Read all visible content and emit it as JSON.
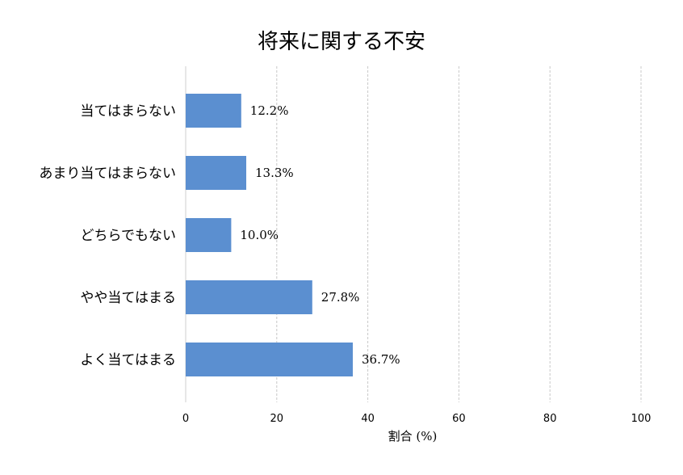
{
  "chart_data": {
    "type": "bar",
    "orientation": "horizontal",
    "title": "将来に関する不安",
    "xlabel": "割合 (%)",
    "ylabel": "",
    "categories": [
      "当てはまらない",
      "あまり当てはまらない",
      "どちらでもない",
      "やや当てはまる",
      "よく当てはまる"
    ],
    "values": [
      12.2,
      13.3,
      10.0,
      27.8,
      36.7
    ],
    "value_labels": [
      "12.2%",
      "13.3%",
      "10.0%",
      "27.8%",
      "36.7%"
    ],
    "xlim": [
      0,
      100
    ],
    "xticks": [
      0,
      20,
      40,
      60,
      80,
      100
    ],
    "xtick_labels": [
      "0",
      "20",
      "40",
      "60",
      "80",
      "100"
    ],
    "grid": true,
    "bar_color": "#5b8fd0"
  }
}
